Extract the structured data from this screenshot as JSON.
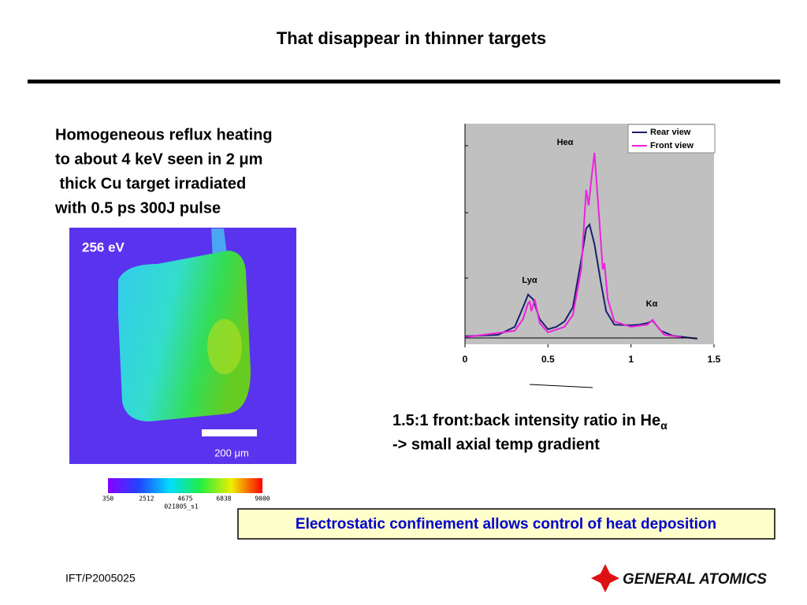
{
  "title": "That disappear in thinner targets",
  "body_lines": [
    "Homogeneous reflux heating",
    "to about 4 keV seen in 2 μm",
    " thick Cu target irradiated",
    "with 0.5 ps 300J pulse"
  ],
  "image": {
    "label": "256 eV",
    "scale_label": "200 μm",
    "colorbar_ticks": [
      350,
      2512,
      4675,
      6838,
      9000
    ],
    "colorbar_id": "021805_s1"
  },
  "chart_data": {
    "type": "line",
    "xlim": [
      0,
      1.5
    ],
    "xticks": [
      0,
      0.5,
      1,
      1.5
    ],
    "ylim": [
      0,
      100
    ],
    "legend": "upper right",
    "annotations": [
      "Heα",
      "Lyα",
      "Kα"
    ],
    "series": [
      {
        "name": "Rear view",
        "color": "#1a1f6e",
        "x": [
          0,
          0.2,
          0.3,
          0.35,
          0.38,
          0.41,
          0.45,
          0.5,
          0.55,
          0.6,
          0.65,
          0.7,
          0.73,
          0.75,
          0.78,
          0.82,
          0.85,
          0.9,
          1.0,
          1.05,
          1.1,
          1.13,
          1.18,
          1.25,
          1.4
        ],
        "values": [
          3.6,
          4.3,
          7.9,
          16.8,
          22.5,
          20.4,
          11.4,
          6.8,
          7.9,
          10.4,
          16.8,
          38.2,
          52.5,
          54.3,
          45.4,
          27.5,
          15,
          8.9,
          8.6,
          8.9,
          9.6,
          10.7,
          6.1,
          3.9,
          2.5
        ]
      },
      {
        "name": "Front view",
        "color": "#ee22dd",
        "x": [
          0,
          0.3,
          0.35,
          0.38,
          0.39,
          0.4,
          0.42,
          0.45,
          0.5,
          0.6,
          0.65,
          0.7,
          0.73,
          0.745,
          0.76,
          0.78,
          0.8,
          0.83,
          0.84,
          0.86,
          0.9,
          1.0,
          1.1,
          1.13,
          1.15,
          1.2,
          1.3
        ],
        "values": [
          3.2,
          6.1,
          11.4,
          18.6,
          19.3,
          15,
          20.4,
          9.6,
          5.4,
          7.9,
          13.2,
          33.9,
          70,
          63,
          74,
          86.8,
          66.4,
          33.9,
          36.8,
          20.4,
          10.4,
          7.9,
          8.9,
          11.1,
          8.9,
          4.3,
          3.2
        ]
      }
    ]
  },
  "caption": {
    "line1": "1.5:1 front:back intensity ratio in He",
    "line1_sub": "α",
    "line2": "-> small axial temp gradient"
  },
  "callout": "Electrostatic confinement allows control of heat deposition",
  "footer": "IFT/P2005025",
  "logo": "GENERAL ATOMICS"
}
